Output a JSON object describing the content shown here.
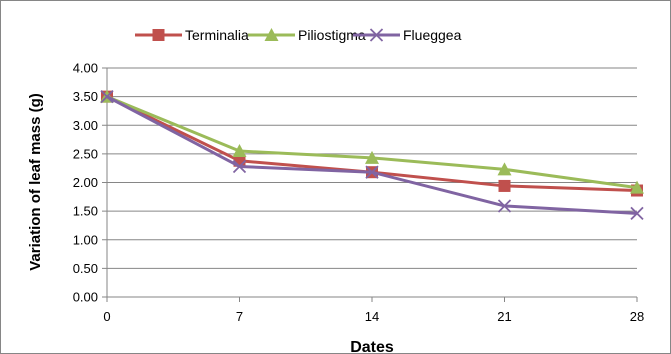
{
  "chart_data": {
    "type": "line",
    "xlabel": "Dates",
    "ylabel": "Variation of leaf mass (g)",
    "x": [
      0,
      7,
      14,
      21,
      28
    ],
    "xlim": [
      0,
      28
    ],
    "ylim": [
      0,
      4
    ],
    "y_ticks": [
      "0.00",
      "0.50",
      "1.00",
      "1.50",
      "2.00",
      "2.50",
      "3.00",
      "3.50",
      "4.00"
    ],
    "x_ticks": [
      "0",
      "7",
      "14",
      "21",
      "28"
    ],
    "grid": "horizontal",
    "legend_position": "top",
    "series": [
      {
        "name": "Terminalia",
        "color": "#c0504d",
        "marker": "square",
        "values": [
          3.5,
          2.38,
          2.18,
          1.94,
          1.86
        ]
      },
      {
        "name": "Piliostigma",
        "color": "#9bbb59",
        "marker": "triangle",
        "values": [
          3.5,
          2.55,
          2.43,
          2.23,
          1.91
        ]
      },
      {
        "name": "Flueggea",
        "color": "#8064a2",
        "marker": "x",
        "values": [
          3.5,
          2.28,
          2.18,
          1.59,
          1.46
        ]
      }
    ]
  }
}
